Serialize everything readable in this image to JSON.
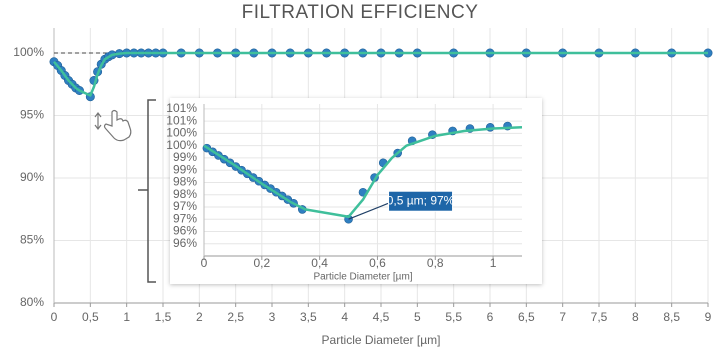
{
  "chart_data": [
    {
      "type": "line",
      "title": "FILTRATION EFFICIENCY",
      "x_label": "Particle Diameter [µm]",
      "xlim": [
        0,
        9
      ],
      "xticks": [
        0,
        {
          "value": 0.5,
          "label": "0,5"
        },
        1,
        {
          "value": 1.5,
          "label": "1,5"
        },
        2,
        {
          "value": 2.5,
          "label": "2,5"
        },
        3,
        {
          "value": 3.5,
          "label": "3,5"
        },
        4,
        {
          "value": 4.5,
          "label": "4,5"
        },
        5,
        {
          "value": 5.5,
          "label": "5,5"
        },
        6,
        {
          "value": 6.5,
          "label": "6,5"
        },
        7,
        {
          "value": 7.5,
          "label": "7,5"
        },
        8,
        {
          "value": 8.5,
          "label": "8,5"
        },
        9
      ],
      "ylim": [
        80,
        102
      ],
      "yticks": [
        {
          "value": 80,
          "label": "80%"
        },
        {
          "value": 85,
          "label": "85%"
        },
        {
          "value": 90,
          "label": "90%"
        },
        {
          "value": 95,
          "label": "95%"
        },
        {
          "value": 100,
          "label": "100%"
        }
      ],
      "grid": true,
      "reference_line": 100,
      "series": [
        {
          "style": "markers",
          "color": "#2f7fc1",
          "x": [
            0,
            0.05,
            0.1,
            0.15,
            0.2,
            0.25,
            0.3,
            0.35,
            0.5,
            0.55,
            0.6,
            0.65,
            0.7,
            0.75,
            0.8,
            0.9,
            1,
            1.1,
            1.2,
            1.3,
            1.4,
            1.5,
            1.75,
            2,
            2.25,
            2.5,
            2.75,
            3,
            3.25,
            3.5,
            3.75,
            4,
            4.25,
            4.5,
            4.75,
            5,
            5.5,
            6,
            6.5,
            7,
            7.5,
            8,
            8.5,
            9
          ],
          "values": [
            99.3,
            99,
            98.6,
            98.2,
            97.8,
            97.5,
            97.2,
            97,
            96.5,
            97.8,
            98.5,
            99.1,
            99.5,
            99.7,
            99.85,
            99.95,
            100,
            100,
            100,
            100,
            100,
            100,
            100,
            100,
            100,
            100,
            100,
            100,
            100,
            100,
            100,
            100,
            100,
            100,
            100,
            100,
            100,
            100,
            100,
            100,
            100,
            100,
            100,
            100
          ]
        },
        {
          "style": "line",
          "color": "#3fbf9b",
          "x": [
            0,
            0.1,
            0.2,
            0.3,
            0.35,
            0.5,
            0.55,
            0.6,
            0.65,
            0.7,
            0.8,
            0.9,
            1,
            1.5,
            9
          ],
          "values": [
            99.3,
            98.6,
            97.8,
            97.2,
            97,
            96.6,
            97.3,
            98.3,
            99,
            99.5,
            99.85,
            99.95,
            100,
            100,
            100
          ]
        }
      ]
    },
    {
      "type": "line",
      "x_label": "Particle Diameter [µm]",
      "annotation": "0,5 µm; 97%",
      "xlim": [
        0,
        1.1
      ],
      "xticks": [
        0,
        {
          "value": 0.2,
          "label": "0,2"
        },
        {
          "value": 0.4,
          "label": "0,4"
        },
        {
          "value": 0.6,
          "label": "0,6"
        },
        {
          "value": 0.8,
          "label": "0,8"
        },
        1
      ],
      "ylim": [
        95,
        101.2
      ],
      "yticks": [
        {
          "value": 95.5,
          "label": "96%"
        },
        {
          "value": 96,
          "label": "96%"
        },
        {
          "value": 96.5,
          "label": "97%"
        },
        {
          "value": 97,
          "label": "97%"
        },
        {
          "value": 97.5,
          "label": "98%"
        },
        {
          "value": 98,
          "label": "98%"
        },
        {
          "value": 98.5,
          "label": "99%"
        },
        {
          "value": 99,
          "label": "99%"
        },
        {
          "value": 99.5,
          "label": "100%"
        },
        {
          "value": 100,
          "label": "100%"
        },
        {
          "value": 100.5,
          "label": "101%"
        },
        {
          "value": 101,
          "label": "101%"
        }
      ],
      "grid": true,
      "series": [
        {
          "style": "markers",
          "color": "#2f7fc1",
          "x": [
            0.01,
            0.03,
            0.05,
            0.07,
            0.09,
            0.11,
            0.13,
            0.15,
            0.17,
            0.19,
            0.21,
            0.23,
            0.25,
            0.27,
            0.29,
            0.31,
            0.34,
            0.5,
            0.55,
            0.59,
            0.62,
            0.67,
            0.72,
            0.79,
            0.86,
            0.92,
            0.99,
            1.05
          ],
          "values": [
            99.4,
            99.25,
            99.1,
            98.95,
            98.8,
            98.65,
            98.5,
            98.35,
            98.2,
            98.05,
            97.9,
            97.75,
            97.6,
            97.45,
            97.3,
            97.15,
            96.9,
            96.5,
            97.6,
            98.2,
            98.8,
            99.2,
            99.7,
            99.95,
            100.1,
            100.2,
            100.25,
            100.3
          ]
        },
        {
          "style": "line",
          "color": "#3fbf9b",
          "x": [
            0,
            0.1,
            0.2,
            0.3,
            0.35,
            0.5,
            0.55,
            0.6,
            0.65,
            0.7,
            0.8,
            0.9,
            1,
            1.1
          ],
          "values": [
            99.5,
            98.75,
            97.95,
            97.2,
            96.9,
            96.6,
            97.3,
            98.3,
            99,
            99.5,
            99.9,
            100.1,
            100.2,
            100.25
          ]
        }
      ]
    }
  ]
}
